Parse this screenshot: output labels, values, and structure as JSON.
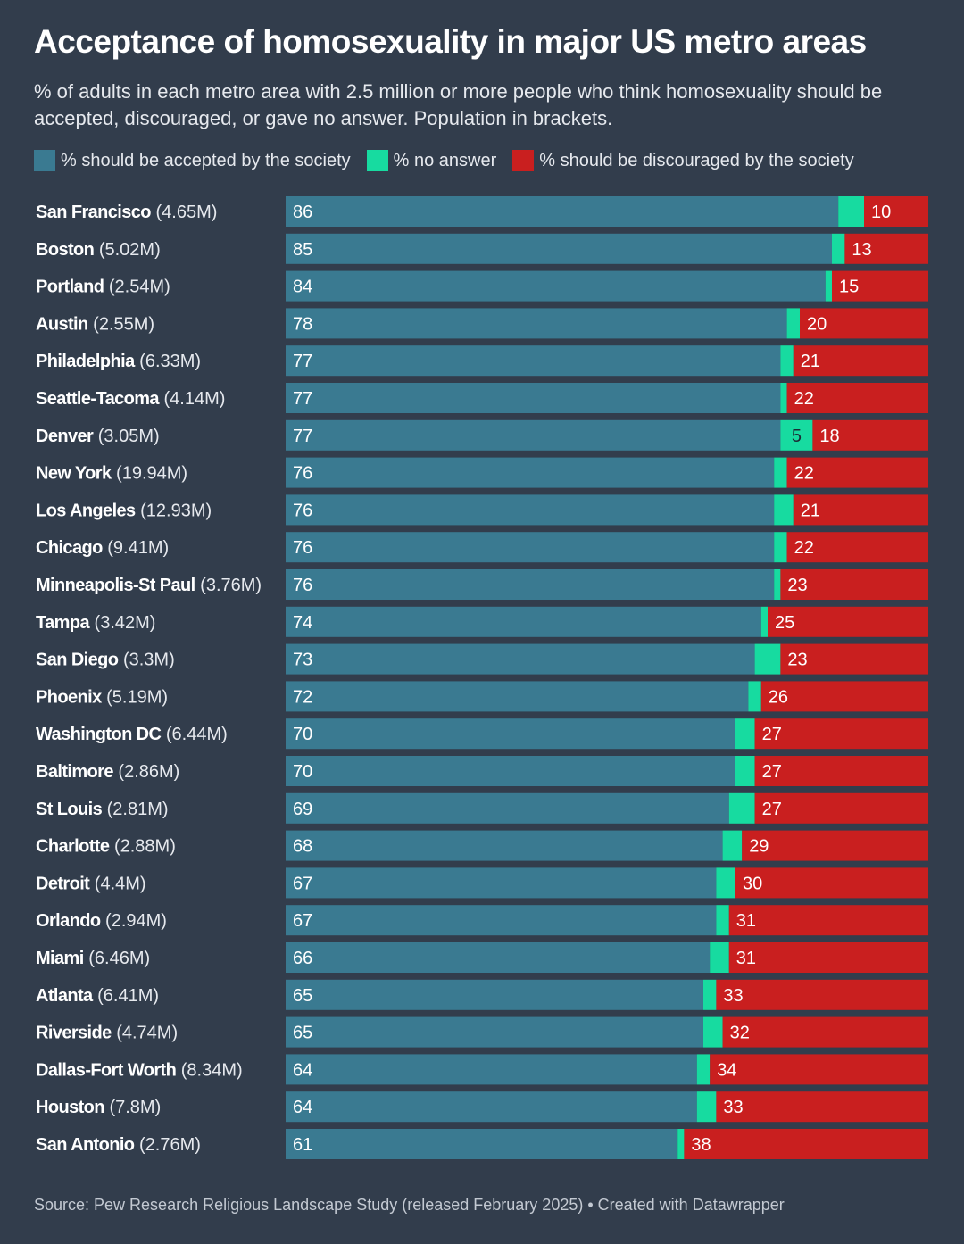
{
  "title": "Acceptance of homosexuality in major US metro areas",
  "subtitle": "% of adults in each metro area with 2.5 million or more people who think homosexuality should be accepted, discouraged, or gave no answer. Population in brackets.",
  "legend": {
    "accepted": "% should be accepted by the society",
    "no_answer": "% no answer",
    "discouraged": "% should be discouraged by the society"
  },
  "colors": {
    "accepted": "#3a7a91",
    "no_answer": "#17dba0",
    "discouraged": "#c91f1f",
    "background": "#323d4c"
  },
  "source": "Source: Pew Research Religious Landscape Study (released February 2025) • Created with Datawrapper",
  "chart_data": {
    "type": "bar",
    "orientation": "horizontal",
    "stacked": true,
    "xlim": [
      0,
      100
    ],
    "categories": [
      {
        "name": "San Francisco",
        "pop": "(4.65M)"
      },
      {
        "name": "Boston",
        "pop": "(5.02M)"
      },
      {
        "name": "Portland",
        "pop": "(2.54M)"
      },
      {
        "name": "Austin",
        "pop": "(2.55M)"
      },
      {
        "name": "Philadelphia",
        "pop": "(6.33M)"
      },
      {
        "name": "Seattle-Tacoma",
        "pop": "(4.14M)"
      },
      {
        "name": "Denver",
        "pop": "(3.05M)"
      },
      {
        "name": "New York",
        "pop": "(19.94M)"
      },
      {
        "name": "Los Angeles",
        "pop": "(12.93M)"
      },
      {
        "name": "Chicago",
        "pop": "(9.41M)"
      },
      {
        "name": "Minneapolis-St Paul",
        "pop": "(3.76M)"
      },
      {
        "name": "Tampa",
        "pop": "(3.42M)"
      },
      {
        "name": "San Diego",
        "pop": "(3.3M)"
      },
      {
        "name": "Phoenix",
        "pop": "(5.19M)"
      },
      {
        "name": "Washington DC",
        "pop": "(6.44M)"
      },
      {
        "name": "Baltimore",
        "pop": "(2.86M)"
      },
      {
        "name": "St Louis",
        "pop": "(2.81M)"
      },
      {
        "name": "Charlotte",
        "pop": "(2.88M)"
      },
      {
        "name": "Detroit",
        "pop": "(4.4M)"
      },
      {
        "name": "Orlando",
        "pop": "(2.94M)"
      },
      {
        "name": "Miami",
        "pop": "(6.46M)"
      },
      {
        "name": "Atlanta",
        "pop": "(6.41M)"
      },
      {
        "name": "Riverside",
        "pop": "(4.74M)"
      },
      {
        "name": "Dallas-Fort Worth",
        "pop": "(8.34M)"
      },
      {
        "name": "Houston",
        "pop": "(7.8M)"
      },
      {
        "name": "San Antonio",
        "pop": "(2.76M)"
      }
    ],
    "series": [
      {
        "key": "accepted",
        "values": [
          86,
          85,
          84,
          78,
          77,
          77,
          77,
          76,
          76,
          76,
          76,
          74,
          73,
          72,
          70,
          70,
          69,
          68,
          67,
          67,
          66,
          65,
          65,
          64,
          64,
          61
        ]
      },
      {
        "key": "no_answer",
        "values": [
          4,
          2,
          1,
          2,
          2,
          1,
          5,
          2,
          3,
          2,
          1,
          1,
          4,
          2,
          3,
          3,
          4,
          3,
          3,
          2,
          3,
          2,
          3,
          2,
          3,
          1
        ],
        "shown_labels": [
          null,
          null,
          null,
          null,
          null,
          null,
          5,
          null,
          null,
          null,
          null,
          null,
          null,
          null,
          null,
          null,
          null,
          null,
          null,
          null,
          null,
          null,
          null,
          null,
          null,
          null
        ]
      },
      {
        "key": "discouraged",
        "values": [
          10,
          13,
          15,
          20,
          21,
          22,
          18,
          22,
          21,
          22,
          23,
          25,
          23,
          26,
          27,
          27,
          27,
          29,
          30,
          31,
          31,
          33,
          32,
          34,
          33,
          38
        ]
      }
    ]
  }
}
